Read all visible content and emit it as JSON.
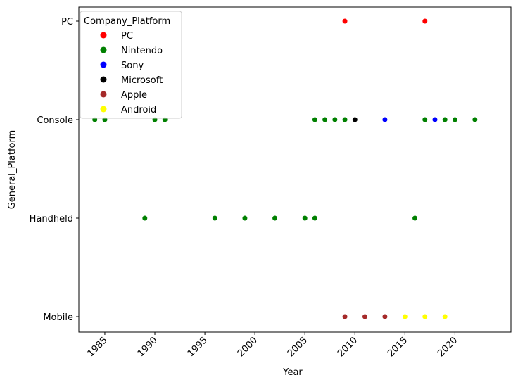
{
  "chart_data": {
    "type": "scatter",
    "xlabel": "Year",
    "ylabel": "General_Platform",
    "xlim": [
      1982.4,
      2025.6
    ],
    "x_ticks": [
      1985,
      1990,
      1995,
      2000,
      2005,
      2010,
      2015,
      2020
    ],
    "categories": [
      "PC",
      "Console",
      "Handheld",
      "Mobile"
    ],
    "legend": {
      "title": "Company_Platform",
      "position": "top-left"
    },
    "series": [
      {
        "name": "PC",
        "color": "#ff0000",
        "points": [
          {
            "x": 2009,
            "y": "PC"
          },
          {
            "x": 2017,
            "y": "PC"
          }
        ]
      },
      {
        "name": "Nintendo",
        "color": "#008000",
        "points": [
          {
            "x": 1984,
            "y": "Console"
          },
          {
            "x": 1985,
            "y": "Console"
          },
          {
            "x": 1990,
            "y": "Console"
          },
          {
            "x": 1991,
            "y": "Console"
          },
          {
            "x": 2006,
            "y": "Console"
          },
          {
            "x": 2007,
            "y": "Console"
          },
          {
            "x": 2008,
            "y": "Console"
          },
          {
            "x": 2009,
            "y": "Console"
          },
          {
            "x": 2017,
            "y": "Console"
          },
          {
            "x": 2019,
            "y": "Console"
          },
          {
            "x": 2020,
            "y": "Console"
          },
          {
            "x": 2022,
            "y": "Console"
          },
          {
            "x": 1989,
            "y": "Handheld"
          },
          {
            "x": 1996,
            "y": "Handheld"
          },
          {
            "x": 1999,
            "y": "Handheld"
          },
          {
            "x": 2002,
            "y": "Handheld"
          },
          {
            "x": 2005,
            "y": "Handheld"
          },
          {
            "x": 2006,
            "y": "Handheld"
          },
          {
            "x": 2016,
            "y": "Handheld"
          }
        ]
      },
      {
        "name": "Sony",
        "color": "#0000ff",
        "points": [
          {
            "x": 2013,
            "y": "Console"
          },
          {
            "x": 2018,
            "y": "Console"
          }
        ]
      },
      {
        "name": "Microsoft",
        "color": "#000000",
        "points": [
          {
            "x": 2010,
            "y": "Console"
          }
        ]
      },
      {
        "name": "Apple",
        "color": "#a52a2a",
        "points": [
          {
            "x": 2009,
            "y": "Mobile"
          },
          {
            "x": 2011,
            "y": "Mobile"
          },
          {
            "x": 2013,
            "y": "Mobile"
          }
        ]
      },
      {
        "name": "Android",
        "color": "#ffff00",
        "points": [
          {
            "x": 2015,
            "y": "Mobile"
          },
          {
            "x": 2017,
            "y": "Mobile"
          },
          {
            "x": 2019,
            "y": "Mobile"
          }
        ]
      }
    ]
  }
}
